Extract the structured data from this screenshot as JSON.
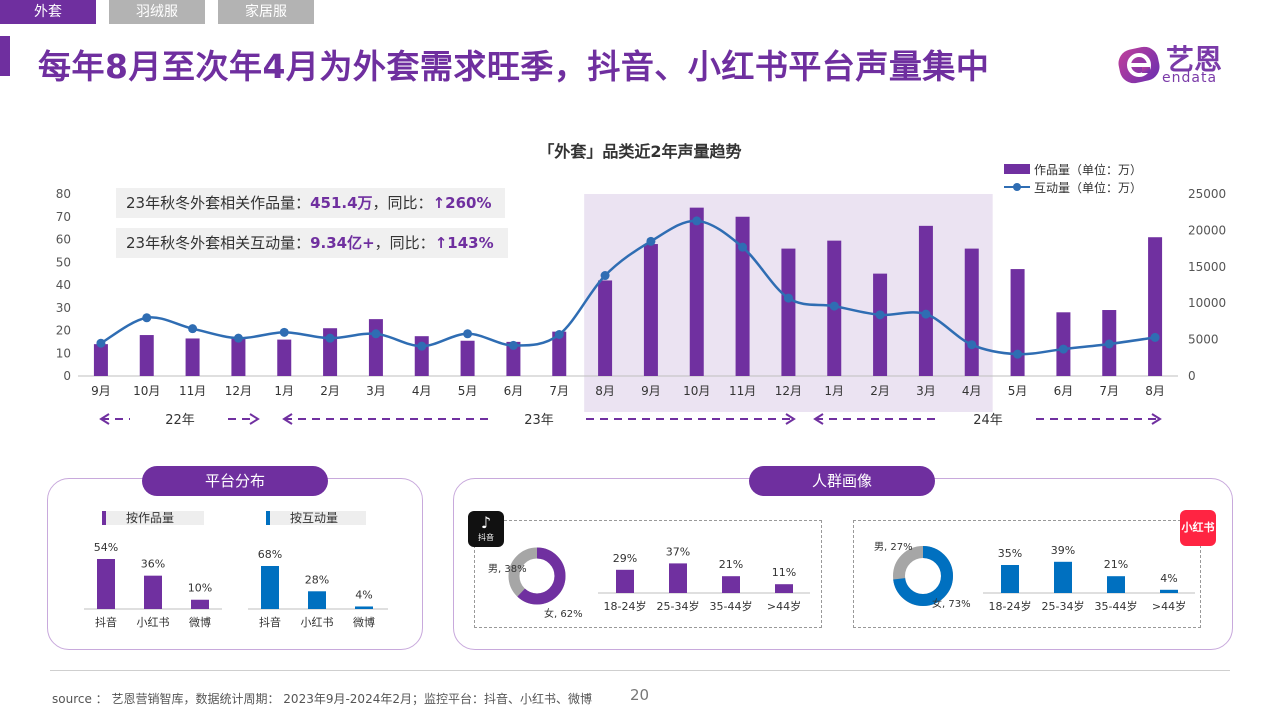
{
  "tabs": [
    {
      "label": "外套",
      "active": true
    },
    {
      "label": "羽绒服",
      "active": false
    },
    {
      "label": "家居服",
      "active": false
    }
  ],
  "title": "每年8月至次年4月为外套需求旺季，抖音、小红书平台声量集中",
  "logo": {
    "cn": "艺恩",
    "en": "endata"
  },
  "callouts": [
    {
      "prefix": "23年秋冬外套相关作品量：",
      "value": "451.4万",
      "mid": "，同比：",
      "yoy": "↑260%"
    },
    {
      "prefix": "23年秋冬外套相关互动量：",
      "value": "9.34亿+",
      "mid": "，同比：",
      "yoy": "↑143%"
    }
  ],
  "chart_data": {
    "type": "bar",
    "title": "「外套」品类近2年声量趋势",
    "categories": [
      "9月",
      "10月",
      "11月",
      "12月",
      "1月",
      "2月",
      "3月",
      "4月",
      "5月",
      "6月",
      "7月",
      "8月",
      "9月",
      "10月",
      "11月",
      "12月",
      "1月",
      "2月",
      "3月",
      "4月",
      "5月",
      "6月",
      "7月",
      "8月"
    ],
    "series": [
      {
        "name": "作品量（单位：万）",
        "type": "bar",
        "axis": "left",
        "color": "#7030a0",
        "values": [
          14,
          18,
          16.5,
          17,
          16,
          21,
          25,
          17.5,
          15.5,
          15,
          19.5,
          42,
          58,
          74,
          70,
          56,
          59.5,
          45,
          66,
          56,
          47,
          28,
          29,
          61
        ]
      },
      {
        "name": "互动量（单位：万）",
        "type": "line",
        "axis": "right",
        "color": "#2f6db3",
        "values": [
          4500,
          8000,
          6500,
          5200,
          6000,
          5200,
          5800,
          4100,
          5800,
          4200,
          5700,
          13800,
          18500,
          21300,
          17700,
          10700,
          9600,
          8400,
          8500,
          4300,
          3000,
          3700,
          4400,
          5300
        ]
      }
    ],
    "ylim_left": [
      0,
      80
    ],
    "yticks_left": [
      0,
      10,
      20,
      30,
      40,
      50,
      60,
      70,
      80
    ],
    "ylim_right": [
      0,
      25000
    ],
    "yticks_right": [
      0,
      5000,
      10000,
      15000,
      20000,
      25000
    ],
    "highlight_range": [
      "8月",
      "4月"
    ],
    "legend": "top-right",
    "year_labels": [
      "22年",
      "23年",
      "24年"
    ]
  },
  "platform": {
    "label": "平台分布",
    "by_works": {
      "label": "按作品量",
      "items": [
        {
          "name": "抖音",
          "value": 54,
          "text": "54%"
        },
        {
          "name": "小红书",
          "value": 36,
          "text": "36%"
        },
        {
          "name": "微博",
          "value": 10,
          "text": "10%"
        }
      ]
    },
    "by_interact": {
      "label": "按互动量",
      "items": [
        {
          "name": "抖音",
          "value": 68,
          "text": "68%"
        },
        {
          "name": "小红书",
          "value": 28,
          "text": "28%"
        },
        {
          "name": "微博",
          "value": 4,
          "text": "4%"
        }
      ]
    }
  },
  "audience": {
    "label": "人群画像",
    "douyin": {
      "icon_label": "抖音",
      "gender": [
        {
          "label": "男, 38%",
          "value": 38
        },
        {
          "label": "女, 62%",
          "value": 62
        }
      ],
      "ages": [
        {
          "name": "18-24岁",
          "value": 29,
          "text": "29%"
        },
        {
          "name": "25-34岁",
          "value": 37,
          "text": "37%"
        },
        {
          "name": "35-44岁",
          "value": 21,
          "text": "21%"
        },
        {
          "name": ">44岁",
          "value": 11,
          "text": "11%"
        }
      ]
    },
    "xhs": {
      "icon_label": "小红书",
      "gender": [
        {
          "label": "男, 27%",
          "value": 27
        },
        {
          "label": "女, 73%",
          "value": 73
        }
      ],
      "ages": [
        {
          "name": "18-24岁",
          "value": 35,
          "text": "35%"
        },
        {
          "name": "25-34岁",
          "value": 39,
          "text": "39%"
        },
        {
          "name": "35-44岁",
          "value": 21,
          "text": "21%"
        },
        {
          "name": ">44岁",
          "value": 4,
          "text": "4%"
        }
      ]
    }
  },
  "colors": {
    "purple": "#7030a0",
    "blue": "#0070c0",
    "line_blue": "#2f6db3",
    "grey": "#a6a6a6",
    "highlight": "#ebe3f2"
  },
  "footer": {
    "source": "source ： 艺恩营销智库，数据统计周期： 2023年9月-2024年2月；监控平台：抖音、小红书、微博",
    "page": "20"
  }
}
